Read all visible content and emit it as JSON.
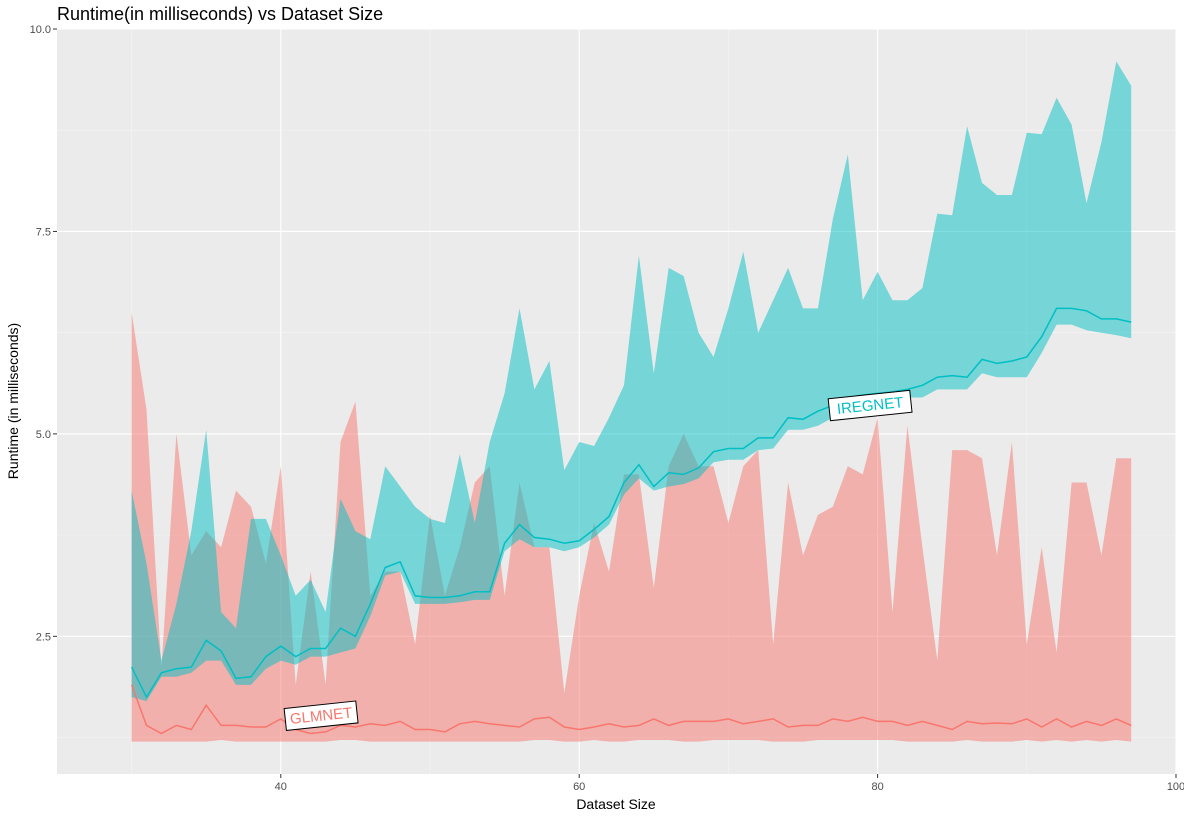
{
  "chart_data": {
    "type": "area",
    "title": "Runtime(in milliseconds) vs Dataset Size",
    "xlabel": "Dataset Size",
    "ylabel": "Runtime (in milliseconds)",
    "xlim": [
      25,
      100
    ],
    "ylim": [
      0.8,
      10
    ],
    "xticks": [
      40,
      60,
      80,
      100
    ],
    "yticks": [
      2.5,
      5.0,
      7.5,
      10.0
    ],
    "ytick_labels": [
      "2.5",
      "5.0",
      "7.5",
      "10.0"
    ],
    "xtick_labels": [
      "40",
      "60",
      "80",
      "100"
    ],
    "grid": true,
    "background": "#EBEBEB",
    "series": [
      {
        "name": "GLMNET",
        "color": "#F8766D",
        "fill": "#F8766D",
        "label_at": [
          42.7,
          1.52
        ],
        "x": [
          30,
          31,
          32,
          33,
          34,
          35,
          36,
          37,
          38,
          39,
          40,
          41,
          42,
          43,
          44,
          45,
          46,
          47,
          48,
          49,
          50,
          51,
          52,
          53,
          54,
          55,
          56,
          57,
          58,
          59,
          60,
          61,
          62,
          63,
          64,
          65,
          66,
          67,
          68,
          69,
          70,
          71,
          72,
          73,
          74,
          75,
          76,
          77,
          78,
          79,
          80,
          81,
          82,
          83,
          84,
          85,
          86,
          87,
          88,
          89,
          90,
          91,
          92,
          93,
          94,
          95,
          96,
          97
        ],
        "mean": [
          1.9,
          1.4,
          1.3,
          1.4,
          1.35,
          1.65,
          1.4,
          1.4,
          1.38,
          1.38,
          1.48,
          1.35,
          1.3,
          1.32,
          1.4,
          1.38,
          1.42,
          1.4,
          1.45,
          1.35,
          1.35,
          1.32,
          1.42,
          1.45,
          1.42,
          1.4,
          1.38,
          1.48,
          1.5,
          1.38,
          1.35,
          1.38,
          1.42,
          1.38,
          1.4,
          1.48,
          1.4,
          1.45,
          1.45,
          1.45,
          1.48,
          1.42,
          1.45,
          1.48,
          1.38,
          1.4,
          1.4,
          1.48,
          1.45,
          1.5,
          1.45,
          1.45,
          1.4,
          1.45,
          1.4,
          1.35,
          1.45,
          1.42,
          1.43,
          1.42,
          1.48,
          1.38,
          1.48,
          1.38,
          1.45,
          1.4,
          1.48,
          1.4
        ],
        "upper": [
          6.5,
          5.3,
          2.1,
          5.0,
          3.5,
          3.8,
          3.6,
          4.3,
          4.1,
          3.4,
          4.6,
          1.9,
          3.3,
          1.9,
          4.9,
          5.4,
          3.0,
          3.3,
          3.3,
          2.4,
          4.0,
          3.0,
          3.6,
          4.4,
          4.6,
          3.0,
          4.4,
          3.6,
          3.6,
          1.8,
          3.0,
          3.9,
          3.3,
          4.5,
          4.5,
          3.1,
          4.6,
          5.0,
          4.6,
          4.6,
          3.9,
          4.6,
          4.8,
          2.4,
          4.4,
          3.5,
          4.0,
          4.1,
          4.6,
          4.5,
          5.2,
          2.8,
          5.1,
          3.6,
          2.2,
          4.8,
          4.8,
          4.7,
          3.5,
          4.9,
          2.4,
          3.6,
          2.3,
          4.4,
          4.4,
          3.5,
          4.7,
          4.7
        ],
        "lower": [
          1.2,
          1.2,
          1.2,
          1.2,
          1.2,
          1.2,
          1.22,
          1.2,
          1.2,
          1.2,
          1.2,
          1.2,
          1.2,
          1.2,
          1.22,
          1.22,
          1.2,
          1.2,
          1.2,
          1.2,
          1.2,
          1.2,
          1.2,
          1.2,
          1.2,
          1.2,
          1.2,
          1.22,
          1.22,
          1.2,
          1.2,
          1.22,
          1.2,
          1.2,
          1.22,
          1.22,
          1.22,
          1.2,
          1.2,
          1.22,
          1.22,
          1.22,
          1.22,
          1.2,
          1.2,
          1.2,
          1.22,
          1.22,
          1.22,
          1.22,
          1.22,
          1.22,
          1.2,
          1.2,
          1.2,
          1.2,
          1.22,
          1.2,
          1.2,
          1.2,
          1.22,
          1.2,
          1.22,
          1.2,
          1.22,
          1.2,
          1.22,
          1.2
        ]
      },
      {
        "name": "IREGNET",
        "color": "#00BFC4",
        "fill": "#00BFC4",
        "label_at": [
          79.5,
          5.35
        ],
        "x": [
          30,
          31,
          32,
          33,
          34,
          35,
          36,
          37,
          38,
          39,
          40,
          41,
          42,
          43,
          44,
          45,
          46,
          47,
          48,
          49,
          50,
          51,
          52,
          53,
          54,
          55,
          56,
          57,
          58,
          59,
          60,
          61,
          62,
          63,
          64,
          65,
          66,
          67,
          68,
          69,
          70,
          71,
          72,
          73,
          74,
          75,
          76,
          77,
          78,
          79,
          80,
          81,
          82,
          83,
          84,
          85,
          86,
          87,
          88,
          89,
          90,
          91,
          92,
          93,
          94,
          95,
          96,
          97
        ],
        "mean": [
          2.12,
          1.75,
          2.05,
          2.1,
          2.12,
          2.45,
          2.32,
          1.98,
          2.0,
          2.25,
          2.38,
          2.25,
          2.35,
          2.35,
          2.6,
          2.5,
          2.9,
          3.35,
          3.42,
          3.0,
          2.98,
          2.98,
          3.0,
          3.05,
          3.05,
          3.65,
          3.88,
          3.72,
          3.7,
          3.65,
          3.68,
          3.82,
          3.98,
          4.4,
          4.62,
          4.35,
          4.52,
          4.5,
          4.58,
          4.78,
          4.82,
          4.82,
          4.95,
          4.95,
          5.2,
          5.18,
          5.28,
          5.35,
          5.45,
          5.48,
          5.5,
          5.52,
          5.55,
          5.6,
          5.7,
          5.72,
          5.7,
          5.92,
          5.87,
          5.9,
          5.95,
          6.2,
          6.55,
          6.55,
          6.52,
          6.42,
          6.42,
          6.38
        ],
        "upper": [
          4.3,
          3.4,
          2.2,
          2.9,
          3.8,
          5.05,
          2.8,
          2.6,
          3.95,
          3.95,
          3.5,
          3.0,
          3.2,
          2.8,
          4.2,
          3.8,
          3.7,
          4.6,
          4.35,
          4.1,
          3.95,
          3.9,
          4.75,
          3.9,
          4.9,
          5.5,
          6.55,
          5.55,
          5.9,
          4.55,
          4.9,
          4.85,
          5.2,
          5.6,
          7.2,
          5.75,
          7.05,
          6.95,
          6.25,
          5.95,
          6.55,
          7.25,
          6.25,
          6.65,
          7.05,
          6.55,
          6.55,
          7.65,
          8.45,
          6.65,
          7.0,
          6.65,
          6.65,
          6.8,
          7.72,
          7.7,
          8.8,
          8.1,
          7.95,
          7.95,
          8.72,
          8.7,
          9.15,
          8.82,
          7.85,
          8.6,
          9.6,
          9.3
        ],
        "lower": [
          1.75,
          1.7,
          2.0,
          2.0,
          2.05,
          2.2,
          2.2,
          1.9,
          1.9,
          2.1,
          2.2,
          2.15,
          2.25,
          2.25,
          2.3,
          2.35,
          2.75,
          3.25,
          3.3,
          2.9,
          2.9,
          2.9,
          2.92,
          2.95,
          2.95,
          3.55,
          3.7,
          3.6,
          3.6,
          3.55,
          3.6,
          3.72,
          3.88,
          4.25,
          4.45,
          4.3,
          4.35,
          4.38,
          4.45,
          4.65,
          4.68,
          4.68,
          4.8,
          4.82,
          5.05,
          5.05,
          5.1,
          5.2,
          5.3,
          5.35,
          5.38,
          5.4,
          5.45,
          5.45,
          5.55,
          5.55,
          5.55,
          5.75,
          5.7,
          5.7,
          5.7,
          6.0,
          6.35,
          6.35,
          6.28,
          6.25,
          6.22,
          6.18
        ]
      }
    ]
  }
}
